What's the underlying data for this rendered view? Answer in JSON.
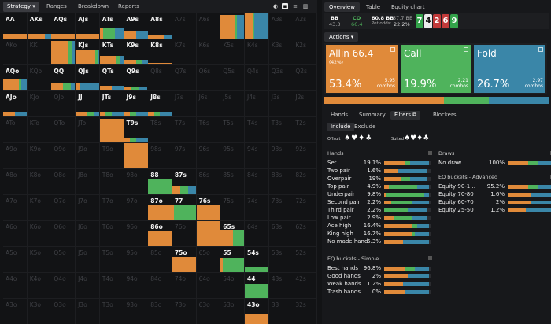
{
  "colors": {
    "allin": "#e08a3a",
    "call": "#4fb35c",
    "fold": "#3a86a8",
    "bg": "#121315"
  },
  "toolbar": {
    "strategy": "Strategy",
    "ranges": "Ranges",
    "breakdown": "Breakdown",
    "reports": "Reports"
  },
  "grid": [
    [
      "AA",
      "AKs",
      "AQs",
      "AJs",
      "ATs",
      "A9s",
      "A8s",
      "A7s",
      "A6s",
      "A5s",
      "A4s",
      "A3s",
      "A2s"
    ],
    [
      "AKo",
      "KK",
      "KQs",
      "KJs",
      "KTs",
      "K9s",
      "K8s",
      "K7s",
      "K6s",
      "K5s",
      "K4s",
      "K3s",
      "K2s"
    ],
    [
      "AQo",
      "KQo",
      "QQ",
      "QJs",
      "QTs",
      "Q9s",
      "Q8s",
      "Q7s",
      "Q6s",
      "Q5s",
      "Q4s",
      "Q3s",
      "Q2s"
    ],
    [
      "AJo",
      "KJo",
      "QJo",
      "JJ",
      "JTs",
      "J9s",
      "J8s",
      "J7s",
      "J6s",
      "J5s",
      "J4s",
      "J3s",
      "J2s"
    ],
    [
      "ATo",
      "KTo",
      "QTo",
      "JTo",
      "TT",
      "T9s",
      "T8s",
      "T7s",
      "T6s",
      "T5s",
      "T4s",
      "T3s",
      "T2s"
    ],
    [
      "A9o",
      "K9o",
      "Q9o",
      "J9o",
      "T9o",
      "99",
      "98s",
      "97s",
      "96s",
      "95s",
      "94s",
      "93s",
      "92s"
    ],
    [
      "A8o",
      "K8o",
      "Q8o",
      "J8o",
      "T8o",
      "98o",
      "88",
      "87s",
      "86s",
      "85s",
      "84s",
      "83s",
      "82s"
    ],
    [
      "A7o",
      "K7o",
      "Q7o",
      "J7o",
      "T7o",
      "97o",
      "87o",
      "77",
      "76s",
      "75s",
      "74s",
      "73s",
      "72s"
    ],
    [
      "A6o",
      "K6o",
      "Q6o",
      "J6o",
      "T6o",
      "96o",
      "86o",
      "76o",
      "66",
      "65s",
      "64s",
      "63s",
      "62s"
    ],
    [
      "A5o",
      "K5o",
      "Q5o",
      "J5o",
      "T5o",
      "95o",
      "85o",
      "75o",
      "65o",
      "55",
      "54s",
      "53s",
      "52s"
    ],
    [
      "A4o",
      "K4o",
      "Q4o",
      "J4o",
      "T4o",
      "94o",
      "84o",
      "74o",
      "64o",
      "54o",
      "44",
      "43s",
      "42s"
    ],
    [
      "A3o",
      "K3o",
      "Q3o",
      "J3o",
      "T3o",
      "93o",
      "83o",
      "73o",
      "63o",
      "53o",
      "43o",
      "33",
      "32s"
    ]
  ],
  "strategy": {
    "AA": [
      0.2,
      0,
      0
    ],
    "AKs": [
      0.15,
      0,
      0.05
    ],
    "AQs": [
      0.2,
      0,
      0
    ],
    "AJs": [
      0.2,
      0,
      0
    ],
    "ATs": [
      0.05,
      0.2,
      0.15
    ],
    "A9s": [
      0.15,
      0,
      0.15
    ],
    "A8s": [
      0.1,
      0,
      0.05
    ],
    "A5s": [
      0.6,
      0.05,
      0.3
    ],
    "A4s": [
      0.35,
      0.05,
      0.6
    ],
    "KQs": [
      0.7,
      0.15,
      0.1
    ],
    "KJs": [
      0.5,
      0.05,
      0.05
    ],
    "KTs": [
      0.25,
      0.05,
      0.05
    ],
    "K9s": [
      0.1,
      0.05,
      0.05
    ],
    "K8s": [
      0.05,
      0,
      0
    ],
    "AQo": [
      0.3,
      0.05,
      0.1
    ],
    "QQ": [
      0.15,
      0.1,
      0.05
    ],
    "QJs": [
      0.05,
      0,
      0.25
    ],
    "QTs": [
      0.1,
      0,
      0.1
    ],
    "Q9s": [
      0.05,
      0.05,
      0.05
    ],
    "AJo": [
      0.1,
      0,
      0.1
    ],
    "JJ": [
      0.1,
      0.05,
      0.05
    ],
    "JTs": [
      0.05,
      0.05,
      0.1
    ],
    "J9s": [
      0.05,
      0.05,
      0.1
    ],
    "J8s": [
      0.05,
      0.05,
      0.1
    ],
    "TT": [
      0.95,
      0,
      0
    ],
    "T9s": [
      0.05,
      0.05,
      0.1
    ],
    "99": [
      1,
      0,
      0
    ],
    "88": [
      0,
      0.6,
      0
    ],
    "87s": [
      0.1,
      0.1,
      0.1
    ],
    "87o": [
      0.6,
      0,
      0
    ],
    "77": [
      0.05,
      0.55,
      0
    ],
    "76s": [
      0.6,
      0,
      0
    ],
    "86o": [
      0.6,
      0,
      0
    ],
    "66": [
      1,
      0,
      0
    ],
    "65s": [
      0.35,
      0.3,
      0
    ],
    "75o": [
      0.6,
      0,
      0
    ],
    "55": [
      0.05,
      0.5,
      0
    ],
    "54s": [
      0,
      0.2,
      0
    ],
    "44": [
      0,
      0.55,
      0
    ],
    "43o": [
      0.4,
      0,
      0
    ]
  },
  "right": {
    "tabs": [
      "Overview",
      "Table",
      "Equity chart"
    ],
    "bb_label": "BB",
    "bb_val": "43.3",
    "co_label": "CO",
    "co_val": "66.4",
    "pot": "80.8 BB",
    "eff": "57.7 BB",
    "pot_odds_label": "Pot odds:",
    "pot_odds": "22.2%",
    "cards": [
      {
        "r": "7",
        "c": "#33a34a"
      },
      {
        "r": "4",
        "c": "#ececec",
        "t": "#111"
      },
      {
        "r": "2",
        "c": "#c23a3a"
      },
      {
        "r": "6",
        "c": "#c23a3a"
      },
      {
        "r": "9",
        "c": "#33a34a"
      }
    ],
    "actions_label": "Actions",
    "actions": [
      {
        "name": "Allin 66.4",
        "sub": "(42%)",
        "pct": "53.4%",
        "combos": "5.95",
        "combos_label": "combos"
      },
      {
        "name": "Call",
        "sub": "",
        "pct": "19.9%",
        "combos": "2.21",
        "combos_label": "combos"
      },
      {
        "name": "Fold",
        "sub": "",
        "pct": "26.7%",
        "combos": "2.97",
        "combos_label": "combos"
      }
    ],
    "subtabs": [
      "Hands",
      "Summary",
      "Filters",
      "Blockers"
    ],
    "filter_modes": [
      "Include",
      "Exclude"
    ],
    "offsuit_label": "Offsuit",
    "suited_label": "Suited",
    "hands_title": "Hands",
    "hands": [
      {
        "n": "Set",
        "v": "19.1%",
        "p": [
          0.45,
          0.1,
          0.4
        ]
      },
      {
        "n": "Two pair",
        "v": "1.6%",
        "p": [
          0.3,
          0,
          0.6
        ]
      },
      {
        "n": "Overpair",
        "v": "19%",
        "p": [
          0.35,
          0.2,
          0.35
        ]
      },
      {
        "n": "Top pair",
        "v": "4.9%",
        "p": [
          0.1,
          0.6,
          0.25
        ]
      },
      {
        "n": "Underpair",
        "v": "9.8%",
        "p": [
          0.05,
          0.8,
          0.1
        ]
      },
      {
        "n": "Second pair",
        "v": "2.2%",
        "p": [
          0.15,
          0.45,
          0.35
        ]
      },
      {
        "n": "Third pair",
        "v": "2.2%",
        "p": [
          0,
          0.5,
          0.4
        ]
      },
      {
        "n": "Low pair",
        "v": "2.9%",
        "p": [
          0.2,
          0.4,
          0.3
        ]
      },
      {
        "n": "Ace high",
        "v": "16.4%",
        "p": [
          0.6,
          0.1,
          0.25
        ]
      },
      {
        "n": "King high",
        "v": "16.7%",
        "p": [
          0.6,
          0.05,
          0.3
        ]
      },
      {
        "n": "No made hand",
        "v": "5.3%",
        "p": [
          0.4,
          0,
          0.55
        ]
      }
    ],
    "eq_simple_title": "EQ buckets - Simple",
    "eq_simple": [
      {
        "n": "Best hands",
        "v": "96.8%",
        "p": [
          0.45,
          0.2,
          0.3
        ]
      },
      {
        "n": "Good hands",
        "v": "2%",
        "p": [
          0.5,
          0,
          0.45
        ]
      },
      {
        "n": "Weak hands",
        "v": "1.2%",
        "p": [
          0.4,
          0,
          0.55
        ]
      },
      {
        "n": "Trash hands",
        "v": "0%",
        "p": [
          0.45,
          0,
          0.5
        ]
      }
    ],
    "draws_title": "Draws",
    "draws": [
      {
        "n": "No draw",
        "v": "100%",
        "p": [
          0.45,
          0.2,
          0.3
        ]
      }
    ],
    "eq_adv_title": "EQ buckets - Advanced",
    "eq_adv": [
      {
        "n": "Equity 90-1...",
        "v": "95.2%",
        "p": [
          0.45,
          0.2,
          0.3
        ]
      },
      {
        "n": "Equity 70-80",
        "v": "1.6%",
        "p": [
          0.5,
          0,
          0.45
        ]
      },
      {
        "n": "Equity 60-70",
        "v": "2%",
        "p": [
          0.5,
          0,
          0.45
        ]
      },
      {
        "n": "Equity 25-50",
        "v": "1.2%",
        "p": [
          0.4,
          0,
          0.55
        ]
      }
    ]
  }
}
